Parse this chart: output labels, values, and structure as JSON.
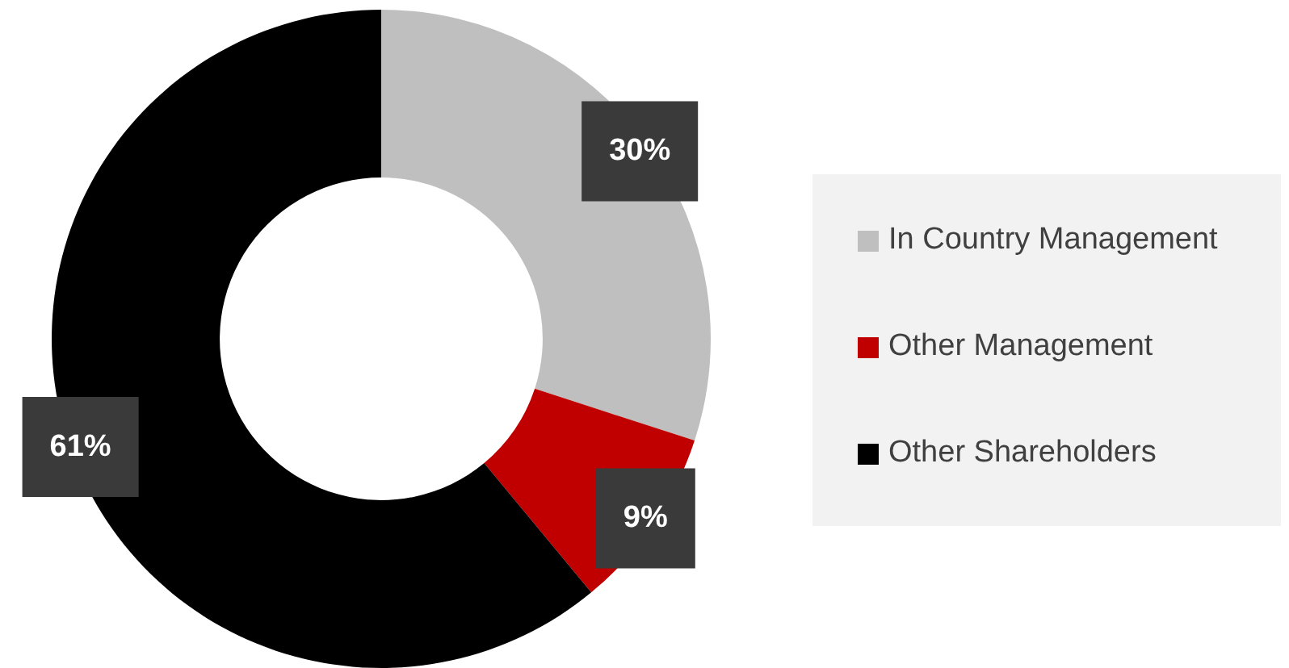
{
  "chart_data": {
    "type": "donut",
    "categories": [
      "In Country Management",
      "Other Management",
      "Other Shareholders"
    ],
    "values": [
      30,
      9,
      61
    ],
    "colors": [
      "#bfbfbf",
      "#c00000",
      "#000000"
    ],
    "value_labels": [
      "30%",
      "9%",
      "61%"
    ],
    "legend": "right"
  }
}
